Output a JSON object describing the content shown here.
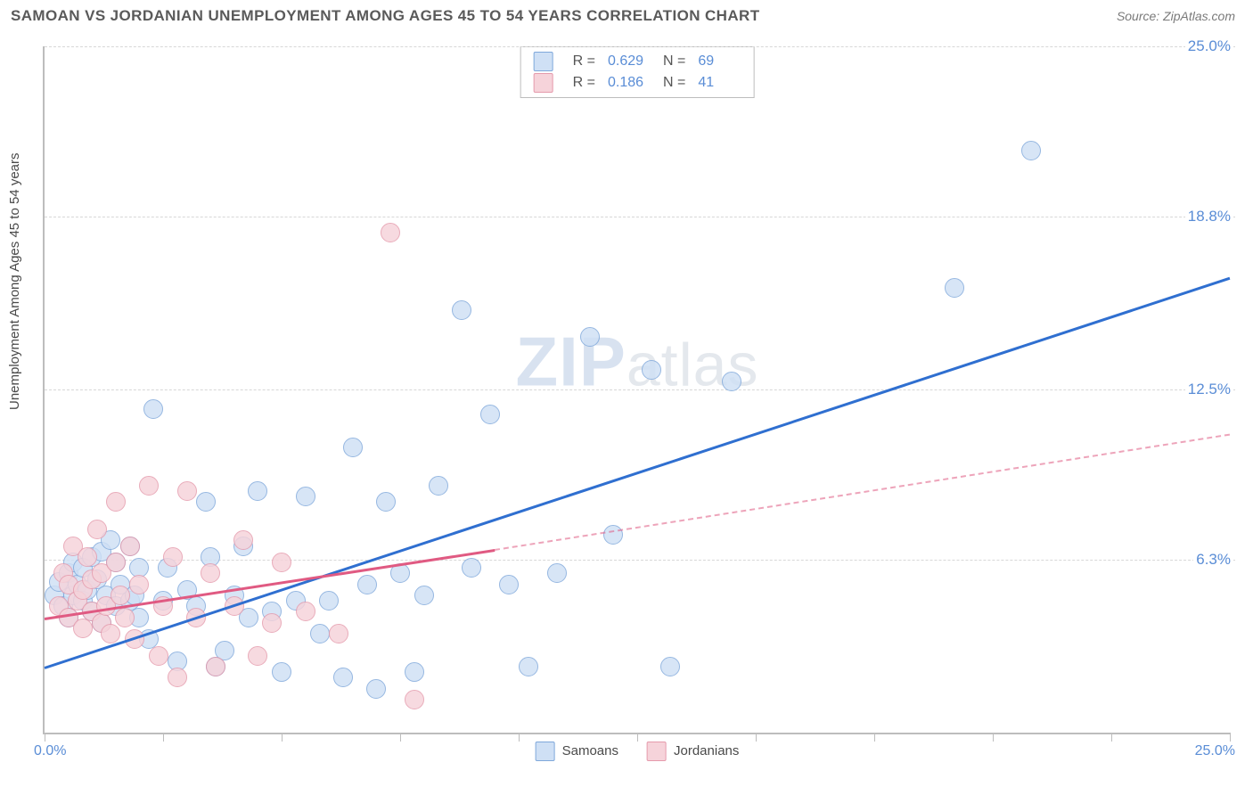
{
  "title": "SAMOAN VS JORDANIAN UNEMPLOYMENT AMONG AGES 45 TO 54 YEARS CORRELATION CHART",
  "source": "Source: ZipAtlas.com",
  "ylabel": "Unemployment Among Ages 45 to 54 years",
  "watermark_a": "ZIP",
  "watermark_b": "atlas",
  "chart": {
    "type": "scatter-with-regression",
    "background_color": "#ffffff",
    "grid_color": "#d7d7d7",
    "axis_color": "#bdbdbd",
    "tick_label_color": "#5a8dd6",
    "tick_fontsize": 17,
    "label_fontsize": 15,
    "xlim": [
      0,
      25
    ],
    "ylim": [
      0,
      25
    ],
    "x_tick_positions": [
      0,
      2.5,
      5,
      7.5,
      10,
      12.5,
      15,
      17.5,
      20,
      22.5,
      25
    ],
    "y_ticks": [
      {
        "v": 6.3,
        "label": "6.3%"
      },
      {
        "v": 12.5,
        "label": "12.5%"
      },
      {
        "v": 18.8,
        "label": "18.8%"
      },
      {
        "v": 25.0,
        "label": "25.0%"
      }
    ],
    "x_min_label": "0.0%",
    "x_max_label": "25.0%",
    "marker_radius": 11,
    "marker_stroke_width": 1.5,
    "reg_line_width": 3,
    "series": [
      {
        "name": "Samoans",
        "fill": "#cfe0f5",
        "stroke": "#7fa8db",
        "line_color": "#2f6fd0",
        "r": "0.629",
        "n": "69",
        "regression": {
          "x0": 0,
          "y0": 2.4,
          "x1_solid": 25,
          "y1_solid": 16.6,
          "x1_dashed": 25,
          "y1_dashed": 16.6
        },
        "points": [
          [
            0.2,
            5.0
          ],
          [
            0.3,
            5.5
          ],
          [
            0.4,
            4.6
          ],
          [
            0.5,
            5.8
          ],
          [
            0.5,
            4.2
          ],
          [
            0.6,
            6.2
          ],
          [
            0.6,
            5.0
          ],
          [
            0.7,
            5.4
          ],
          [
            0.8,
            4.8
          ],
          [
            0.8,
            6.0
          ],
          [
            0.9,
            5.2
          ],
          [
            1.0,
            6.4
          ],
          [
            1.0,
            4.4
          ],
          [
            1.1,
            5.6
          ],
          [
            1.2,
            6.6
          ],
          [
            1.2,
            4.0
          ],
          [
            1.3,
            5.0
          ],
          [
            1.4,
            7.0
          ],
          [
            1.5,
            4.6
          ],
          [
            1.5,
            6.2
          ],
          [
            1.6,
            5.4
          ],
          [
            1.8,
            4.8
          ],
          [
            1.8,
            6.8
          ],
          [
            1.9,
            5.0
          ],
          [
            2.0,
            4.2
          ],
          [
            2.0,
            6.0
          ],
          [
            2.2,
            3.4
          ],
          [
            2.3,
            11.8
          ],
          [
            2.5,
            4.8
          ],
          [
            2.6,
            6.0
          ],
          [
            2.8,
            2.6
          ],
          [
            3.0,
            5.2
          ],
          [
            3.2,
            4.6
          ],
          [
            3.4,
            8.4
          ],
          [
            3.5,
            6.4
          ],
          [
            3.6,
            2.4
          ],
          [
            3.8,
            3.0
          ],
          [
            4.0,
            5.0
          ],
          [
            4.2,
            6.8
          ],
          [
            4.3,
            4.2
          ],
          [
            4.5,
            8.8
          ],
          [
            4.8,
            4.4
          ],
          [
            5.0,
            2.2
          ],
          [
            5.3,
            4.8
          ],
          [
            5.5,
            8.6
          ],
          [
            5.8,
            3.6
          ],
          [
            6.0,
            4.8
          ],
          [
            6.3,
            2.0
          ],
          [
            6.5,
            10.4
          ],
          [
            6.8,
            5.4
          ],
          [
            7.0,
            1.6
          ],
          [
            7.2,
            8.4
          ],
          [
            7.5,
            5.8
          ],
          [
            7.8,
            2.2
          ],
          [
            8.0,
            5.0
          ],
          [
            8.3,
            9.0
          ],
          [
            8.8,
            15.4
          ],
          [
            9.0,
            6.0
          ],
          [
            9.4,
            11.6
          ],
          [
            9.8,
            5.4
          ],
          [
            10.2,
            2.4
          ],
          [
            10.8,
            5.8
          ],
          [
            11.5,
            14.4
          ],
          [
            12.0,
            7.2
          ],
          [
            12.8,
            13.2
          ],
          [
            13.2,
            2.4
          ],
          [
            14.5,
            12.8
          ],
          [
            19.2,
            16.2
          ],
          [
            20.8,
            21.2
          ]
        ]
      },
      {
        "name": "Jordanians",
        "fill": "#f6d3da",
        "stroke": "#e59aac",
        "line_color": "#e05a82",
        "r": "0.186",
        "n": "41",
        "regression": {
          "x0": 0,
          "y0": 4.2,
          "x1_solid": 9.5,
          "y1_solid": 6.7,
          "x1_dashed": 25,
          "y1_dashed": 10.9
        },
        "points": [
          [
            0.3,
            4.6
          ],
          [
            0.4,
            5.8
          ],
          [
            0.5,
            4.2
          ],
          [
            0.5,
            5.4
          ],
          [
            0.6,
            6.8
          ],
          [
            0.7,
            4.8
          ],
          [
            0.8,
            5.2
          ],
          [
            0.8,
            3.8
          ],
          [
            0.9,
            6.4
          ],
          [
            1.0,
            4.4
          ],
          [
            1.0,
            5.6
          ],
          [
            1.1,
            7.4
          ],
          [
            1.2,
            4.0
          ],
          [
            1.2,
            5.8
          ],
          [
            1.3,
            4.6
          ],
          [
            1.4,
            3.6
          ],
          [
            1.5,
            6.2
          ],
          [
            1.5,
            8.4
          ],
          [
            1.6,
            5.0
          ],
          [
            1.7,
            4.2
          ],
          [
            1.8,
            6.8
          ],
          [
            1.9,
            3.4
          ],
          [
            2.0,
            5.4
          ],
          [
            2.2,
            9.0
          ],
          [
            2.4,
            2.8
          ],
          [
            2.5,
            4.6
          ],
          [
            2.7,
            6.4
          ],
          [
            2.8,
            2.0
          ],
          [
            3.0,
            8.8
          ],
          [
            3.2,
            4.2
          ],
          [
            3.5,
            5.8
          ],
          [
            3.6,
            2.4
          ],
          [
            4.0,
            4.6
          ],
          [
            4.2,
            7.0
          ],
          [
            4.5,
            2.8
          ],
          [
            4.8,
            4.0
          ],
          [
            5.0,
            6.2
          ],
          [
            5.5,
            4.4
          ],
          [
            6.2,
            3.6
          ],
          [
            7.3,
            18.2
          ],
          [
            7.8,
            1.2
          ]
        ]
      }
    ],
    "x_legend": [
      {
        "label": "Samoans",
        "fill": "#cfe0f5",
        "stroke": "#7fa8db"
      },
      {
        "label": "Jordanians",
        "fill": "#f6d3da",
        "stroke": "#e59aac"
      }
    ]
  }
}
